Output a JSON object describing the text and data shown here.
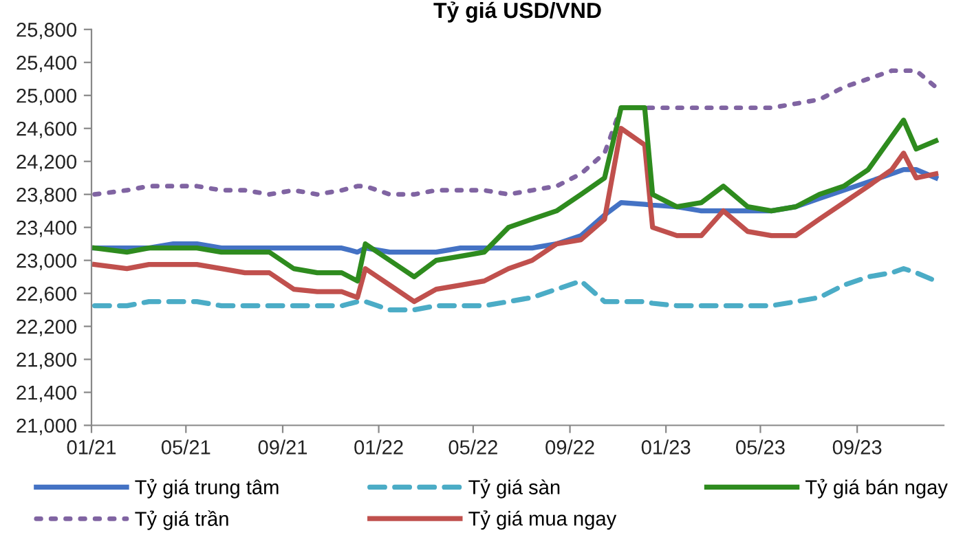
{
  "chart_data": {
    "type": "line",
    "title": "Tỷ giá USD/VND",
    "x": [
      "2021-01-05",
      "2021-02-15",
      "2021-03-15",
      "2021-04-15",
      "2021-05-15",
      "2021-06-15",
      "2021-07-15",
      "2021-08-15",
      "2021-09-15",
      "2021-10-15",
      "2021-11-15",
      "2021-12-05",
      "2021-12-15",
      "2022-01-15",
      "2022-02-15",
      "2022-03-15",
      "2022-04-15",
      "2022-05-15",
      "2022-06-15",
      "2022-07-15",
      "2022-08-15",
      "2022-09-15",
      "2022-10-15",
      "2022-11-05",
      "2022-12-05",
      "2022-12-15",
      "2023-01-15",
      "2023-02-15",
      "2023-03-15",
      "2023-04-15",
      "2023-05-15",
      "2023-06-15",
      "2023-07-15",
      "2023-08-15",
      "2023-09-15",
      "2023-10-15",
      "2023-10-30",
      "2023-11-15",
      "2023-12-10"
    ],
    "series": [
      {
        "name": "Tỷ giá trung tâm",
        "color": "#4472c4",
        "line_style": "solid",
        "values": [
          23150,
          23150,
          23150,
          23200,
          23200,
          23150,
          23150,
          23150,
          23150,
          23150,
          23150,
          23100,
          23150,
          23100,
          23100,
          23100,
          23150,
          23150,
          23150,
          23150,
          23200,
          23300,
          23550,
          23700,
          23680,
          23670,
          23650,
          23600,
          23600,
          23600,
          23600,
          23650,
          23750,
          23850,
          23950,
          24050,
          24100,
          24100,
          24000
        ]
      },
      {
        "name": "Tỷ giá trần",
        "color": "#8064a2",
        "line_style": "dotted",
        "values": [
          23800,
          23850,
          23900,
          23900,
          23900,
          23850,
          23850,
          23800,
          23850,
          23800,
          23850,
          23900,
          23900,
          23800,
          23800,
          23850,
          23850,
          23850,
          23800,
          23850,
          23900,
          24050,
          24300,
          24850,
          24850,
          24850,
          24850,
          24850,
          24850,
          24850,
          24850,
          24900,
          24950,
          25100,
          25200,
          25300,
          25300,
          25300,
          25100
        ]
      },
      {
        "name": "Tỷ giá sàn",
        "color": "#4bacc6",
        "line_style": "dashed",
        "values": [
          22450,
          22450,
          22500,
          22500,
          22500,
          22450,
          22450,
          22450,
          22450,
          22450,
          22450,
          22500,
          22500,
          22400,
          22400,
          22450,
          22450,
          22450,
          22500,
          22550,
          22650,
          22750,
          22500,
          22500,
          22500,
          22480,
          22450,
          22450,
          22450,
          22450,
          22450,
          22500,
          22550,
          22700,
          22800,
          22850,
          22900,
          22850,
          22750
        ]
      },
      {
        "name": "Tỷ giá mua ngay",
        "color": "#c0504d",
        "line_style": "solid",
        "values": [
          22950,
          22900,
          22950,
          22950,
          22950,
          22900,
          22850,
          22850,
          22650,
          22620,
          22620,
          22550,
          22900,
          22700,
          22500,
          22650,
          22700,
          22750,
          22900,
          23000,
          23200,
          23250,
          23500,
          24600,
          24400,
          23400,
          23300,
          23300,
          23600,
          23350,
          23300,
          23300,
          23500,
          23700,
          23900,
          24100,
          24300,
          24000,
          24050
        ]
      },
      {
        "name": "Tỷ giá bán ngay",
        "color": "#2e8b1e",
        "line_style": "solid",
        "values": [
          23150,
          23100,
          23150,
          23150,
          23150,
          23100,
          23100,
          23100,
          22900,
          22850,
          22850,
          22750,
          23200,
          23000,
          22800,
          23000,
          23050,
          23100,
          23400,
          23500,
          23600,
          23800,
          24000,
          24850,
          24850,
          23800,
          23650,
          23700,
          23900,
          23650,
          23600,
          23650,
          23800,
          23900,
          24100,
          24500,
          24700,
          24350,
          24450
        ]
      }
    ],
    "xlim": [
      "2021-01-01",
      "2023-12-20"
    ],
    "xticks": [
      {
        "value": "2021-01-01",
        "label": "01/21"
      },
      {
        "value": "2021-05-01",
        "label": "05/21"
      },
      {
        "value": "2021-09-01",
        "label": "09/21"
      },
      {
        "value": "2022-01-01",
        "label": "01/22"
      },
      {
        "value": "2022-05-01",
        "label": "05/22"
      },
      {
        "value": "2022-09-01",
        "label": "09/22"
      },
      {
        "value": "2023-01-01",
        "label": "01/23"
      },
      {
        "value": "2023-05-01",
        "label": "05/23"
      },
      {
        "value": "2023-09-01",
        "label": "09/23"
      }
    ],
    "ylim": [
      21000,
      25800
    ],
    "yticks": [
      {
        "value": 21000,
        "label": "21,000"
      },
      {
        "value": 21400,
        "label": "21,400"
      },
      {
        "value": 21800,
        "label": "21,800"
      },
      {
        "value": 22200,
        "label": "22,200"
      },
      {
        "value": 22600,
        "label": "22,600"
      },
      {
        "value": 23000,
        "label": "23,000"
      },
      {
        "value": 23400,
        "label": "23,400"
      },
      {
        "value": 23800,
        "label": "23,800"
      },
      {
        "value": 24200,
        "label": "24,200"
      },
      {
        "value": 24600,
        "label": "24,600"
      },
      {
        "value": 25000,
        "label": "25,000"
      },
      {
        "value": 25400,
        "label": "25,400"
      },
      {
        "value": 25800,
        "label": "25,800"
      }
    ],
    "grid": false,
    "legend": "bottom",
    "marker": "none"
  }
}
